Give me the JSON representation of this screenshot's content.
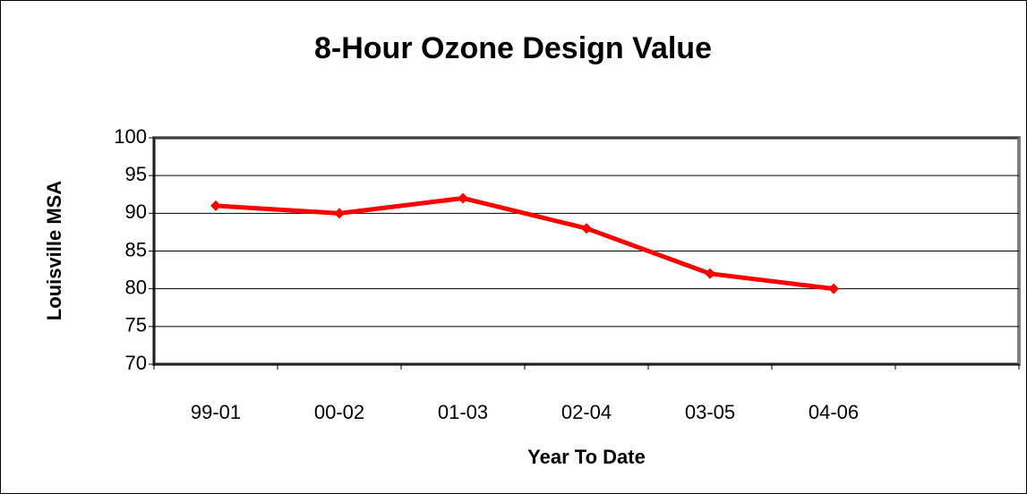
{
  "chart_data": {
    "type": "line",
    "title": "8-Hour Ozone Design Value",
    "x_label": "Year To Date",
    "y_label": "Louisville MSA",
    "categories": [
      "99-01",
      "00-02",
      "01-03",
      "02-04",
      "03-05",
      "04-06",
      null
    ],
    "series": [
      {
        "name": "Louisville MSA",
        "color": "#ff0000",
        "values": [
          91,
          90,
          92,
          88,
          82,
          80,
          null
        ]
      }
    ],
    "ylim": [
      70,
      100
    ],
    "yticks": [
      70,
      75,
      80,
      85,
      90,
      95,
      100
    ],
    "grid": true
  }
}
